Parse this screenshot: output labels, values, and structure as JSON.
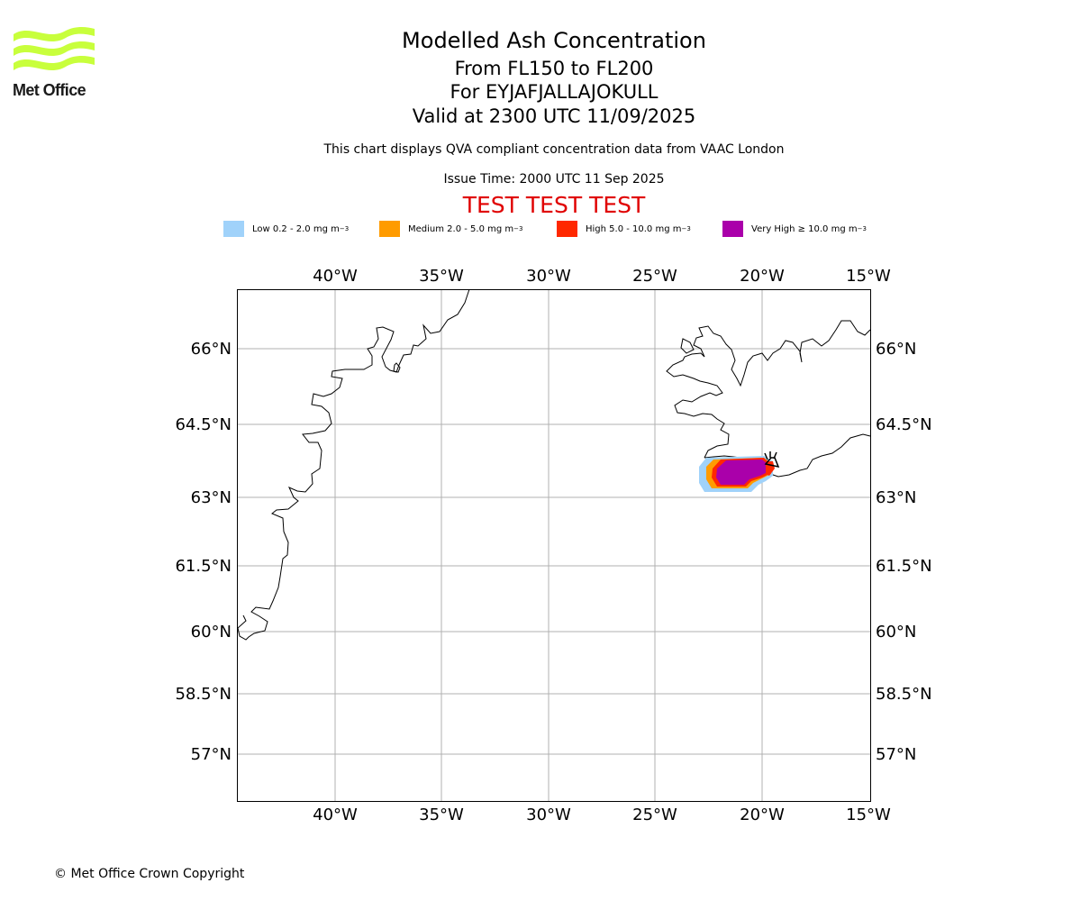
{
  "header": {
    "title": "Modelled Ash Concentration",
    "levels": "From FL150 to FL200",
    "volcano": "For EYJAFJALLAJOKULL",
    "valid": "Valid at 2300 UTC 11/09/2025",
    "description": "This chart displays QVA compliant concentration data from VAAC London",
    "issue_time": "Issue Time: 2000 UTC 11 Sep 2025",
    "test_banner": "TEST TEST TEST",
    "test_color": "#e00000"
  },
  "logo": {
    "text": "Met Office",
    "color": "#c8ff3c",
    "icon": "met-office-wave-logo"
  },
  "legend": [
    {
      "label": "Low 0.2 - 2.0 mg m",
      "exp": "−3",
      "color": "#a0d2fa"
    },
    {
      "label": "Medium 2.0 - 5.0 mg m",
      "exp": "−3",
      "color": "#ff9b00"
    },
    {
      "label": "High 5.0 - 10.0 mg m",
      "exp": "−3",
      "color": "#ff2800"
    },
    {
      "label": "Very High ≥ 10.0 mg m",
      "exp": "−3",
      "color": "#aa00aa"
    }
  ],
  "map": {
    "lon_range": [
      -44.6,
      -15.0
    ],
    "lat_range": [
      55.7,
      67.2
    ],
    "lon_ticks": [
      "40°W",
      "35°W",
      "30°W",
      "25°W",
      "20°W",
      "15°W"
    ],
    "lat_ticks": [
      "66°N",
      "64.5°N",
      "63°N",
      "61.5°N",
      "60°N",
      "58.5°N",
      "57°N"
    ],
    "grid_color": "#b0b0b0",
    "volcano_icon": "volcano-icon"
  },
  "footer": {
    "copyright": "© Met Office Crown Copyright"
  }
}
